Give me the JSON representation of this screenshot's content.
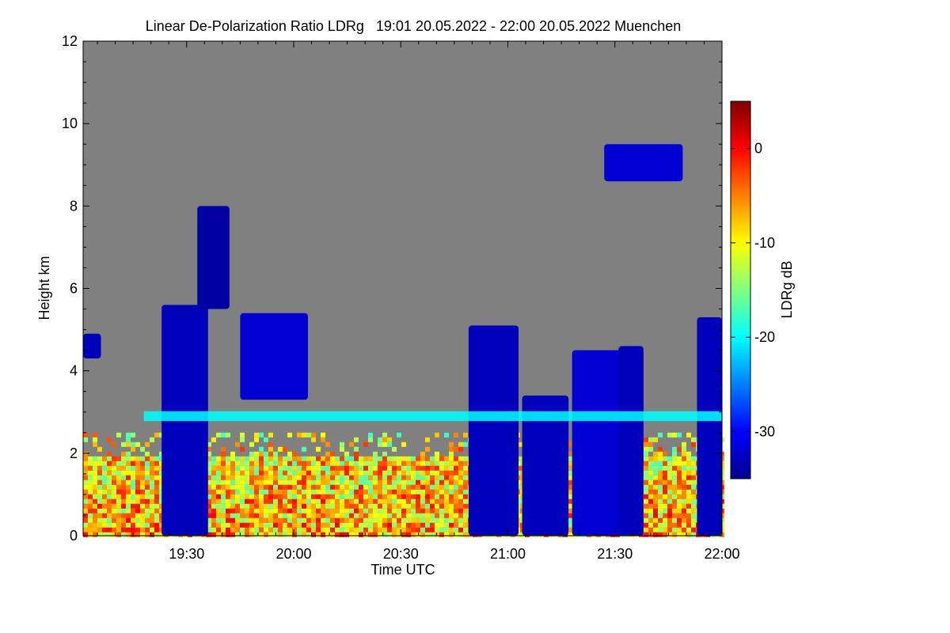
{
  "chart_data": {
    "type": "heatmap",
    "title": "Linear De-Polarization Ratio LDRg   19:01 20.05.2022 - 22:00 20.05.2022 Muenchen",
    "xlabel": "Time UTC",
    "ylabel": "Height km",
    "colorbar_label": "LDRg dB",
    "x_range_minutes": [
      1141,
      1320
    ],
    "x_ticks": [
      {
        "label": "19:30",
        "minute": 1170
      },
      {
        "label": "20:00",
        "minute": 1200
      },
      {
        "label": "20:30",
        "minute": 1230
      },
      {
        "label": "21:00",
        "minute": 1260
      },
      {
        "label": "21:30",
        "minute": 1290
      },
      {
        "label": "22:00",
        "minute": 1320
      }
    ],
    "ylim": [
      0,
      12
    ],
    "y_ticks": [
      0,
      2,
      4,
      6,
      8,
      10,
      12
    ],
    "colorbar_range": [
      -35,
      5
    ],
    "colorbar_ticks": [
      0,
      -10,
      -20,
      -30
    ],
    "no_signal_color": "#808080",
    "colormap": [
      "#00008f",
      "#0000ff",
      "#0080ff",
      "#00ffff",
      "#80ff80",
      "#ffff00",
      "#ff8000",
      "#ff0000",
      "#800000"
    ],
    "regions": [
      {
        "feature": "boundary layer aerosol",
        "start": 1141,
        "end": 1320,
        "bottom": 0,
        "top": 2.0,
        "ldr": -10
      },
      {
        "feature": "cloud",
        "start": 1141,
        "end": 1146,
        "bottom": 4.3,
        "top": 4.9,
        "ldr": -33
      },
      {
        "feature": "fall streak",
        "start": 1163,
        "end": 1176,
        "bottom": 0,
        "top": 5.6,
        "ldr": -33
      },
      {
        "feature": "cloud top",
        "start": 1173,
        "end": 1182,
        "bottom": 5.5,
        "top": 8.0,
        "ldr": -34
      },
      {
        "feature": "cloud",
        "start": 1185,
        "end": 1204,
        "bottom": 3.3,
        "top": 5.4,
        "ldr": -32
      },
      {
        "feature": "cloud",
        "start": 1249,
        "end": 1263,
        "bottom": 0,
        "top": 5.1,
        "ldr": -33
      },
      {
        "feature": "cloud",
        "start": 1264,
        "end": 1277,
        "bottom": 0,
        "top": 3.4,
        "ldr": -33
      },
      {
        "feature": "cloud",
        "start": 1278,
        "end": 1295,
        "bottom": 0,
        "top": 4.5,
        "ldr": -32
      },
      {
        "feature": "cloud",
        "start": 1291,
        "end": 1298,
        "bottom": 0,
        "top": 4.6,
        "ldr": -33
      },
      {
        "feature": "cirrus",
        "start": 1287,
        "end": 1309,
        "bottom": 8.6,
        "top": 9.5,
        "ldr": -32
      },
      {
        "feature": "cloud",
        "start": 1313,
        "end": 1320,
        "bottom": 0,
        "top": 5.3,
        "ldr": -33
      }
    ],
    "melting_layer": {
      "start": 1158,
      "end": 1320,
      "height": 2.9,
      "ldr": -20
    }
  }
}
